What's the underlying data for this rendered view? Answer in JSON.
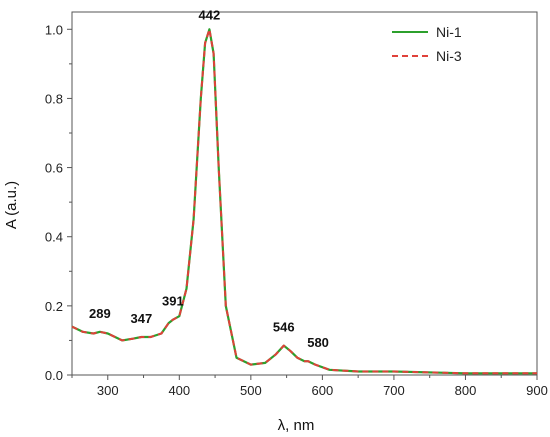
{
  "chart_data": {
    "type": "line",
    "xlabel": "λ, nm",
    "ylabel": "A (a.u.)",
    "xlim": [
      250,
      900
    ],
    "ylim": [
      0,
      1.05
    ],
    "xticks": [
      300,
      400,
      500,
      600,
      700,
      800,
      900
    ],
    "yticks": [
      0.0,
      0.2,
      0.4,
      0.6,
      0.8,
      1.0
    ],
    "ytick_labels": [
      "0.0",
      "0.2",
      "0.4",
      "0.6",
      "0.8",
      "1.0"
    ],
    "grid": false,
    "legend_position": "top-right",
    "series": [
      {
        "name": "Ni-1",
        "color": "#2ca02c",
        "style": "solid",
        "x": [
          250,
          265,
          280,
          289,
          300,
          320,
          335,
          347,
          360,
          375,
          385,
          391,
          400,
          410,
          420,
          430,
          436,
          442,
          448,
          455,
          465,
          480,
          500,
          520,
          535,
          546,
          555,
          565,
          575,
          580,
          590,
          610,
          650,
          700,
          800,
          900
        ],
        "y": [
          0.14,
          0.125,
          0.12,
          0.125,
          0.12,
          0.1,
          0.105,
          0.11,
          0.11,
          0.12,
          0.15,
          0.16,
          0.17,
          0.25,
          0.45,
          0.8,
          0.96,
          1.0,
          0.93,
          0.6,
          0.2,
          0.05,
          0.03,
          0.035,
          0.06,
          0.085,
          0.07,
          0.05,
          0.04,
          0.04,
          0.03,
          0.015,
          0.01,
          0.01,
          0.005,
          0.005
        ]
      },
      {
        "name": "Ni-3",
        "color": "#e0413a",
        "style": "dashed",
        "x": [
          250,
          265,
          280,
          289,
          300,
          320,
          335,
          347,
          360,
          375,
          385,
          391,
          400,
          410,
          420,
          430,
          436,
          442,
          448,
          455,
          465,
          480,
          500,
          520,
          535,
          546,
          555,
          565,
          575,
          580,
          590,
          610,
          650,
          700,
          800,
          900
        ],
        "y": [
          0.14,
          0.125,
          0.12,
          0.125,
          0.12,
          0.1,
          0.105,
          0.11,
          0.11,
          0.12,
          0.15,
          0.16,
          0.17,
          0.25,
          0.45,
          0.8,
          0.96,
          1.0,
          0.93,
          0.6,
          0.2,
          0.05,
          0.03,
          0.035,
          0.06,
          0.085,
          0.07,
          0.05,
          0.04,
          0.04,
          0.03,
          0.015,
          0.01,
          0.01,
          0.005,
          0.005
        ]
      }
    ],
    "annotations": [
      {
        "text": "289",
        "x": 289,
        "y": 0.125
      },
      {
        "text": "347",
        "x": 347,
        "y": 0.11
      },
      {
        "text": "391",
        "x": 391,
        "y": 0.16
      },
      {
        "text": "442",
        "x": 442,
        "y": 1.0
      },
      {
        "text": "546",
        "x": 546,
        "y": 0.085
      },
      {
        "text": "580",
        "x": 580,
        "y": 0.04
      }
    ]
  }
}
